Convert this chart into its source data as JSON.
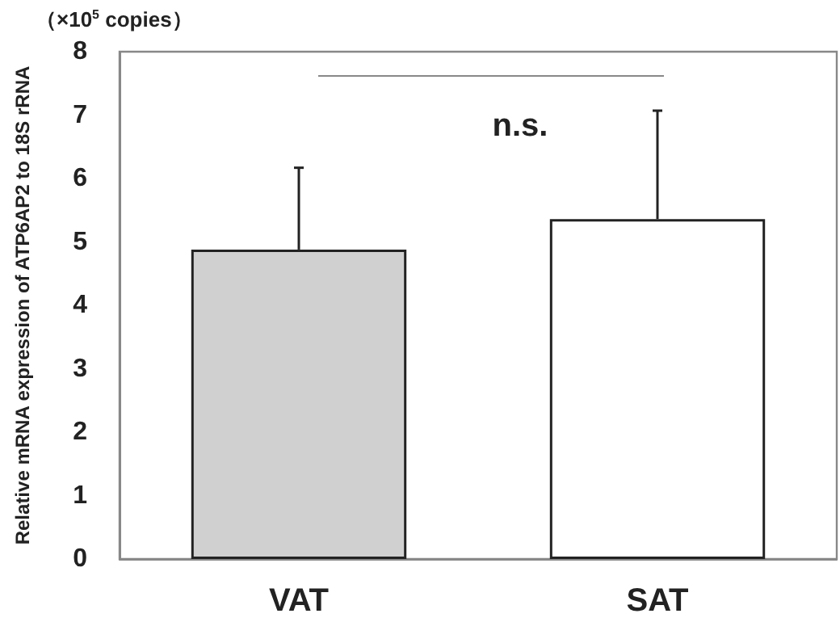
{
  "chart_data": {
    "type": "bar",
    "ylabel": "Relative mRNA expression of ATP6AP2 to 18S rRNA",
    "categories": [
      "VAT",
      "SAT"
    ],
    "values": [
      4.88,
      5.36
    ],
    "colors": [
      "#d0d0d0",
      "#ffffff"
    ],
    "errors": [
      [
        4.88,
        6.17
      ],
      [
        5.36,
        7.07
      ]
    ],
    "ylim": [
      0,
      8
    ],
    "yticks": [
      0,
      1,
      2,
      3,
      4,
      5,
      6,
      7,
      8
    ],
    "grid": false,
    "annotations": [
      "（×10$^{5}$ copies）",
      "n.s."
    ]
  }
}
